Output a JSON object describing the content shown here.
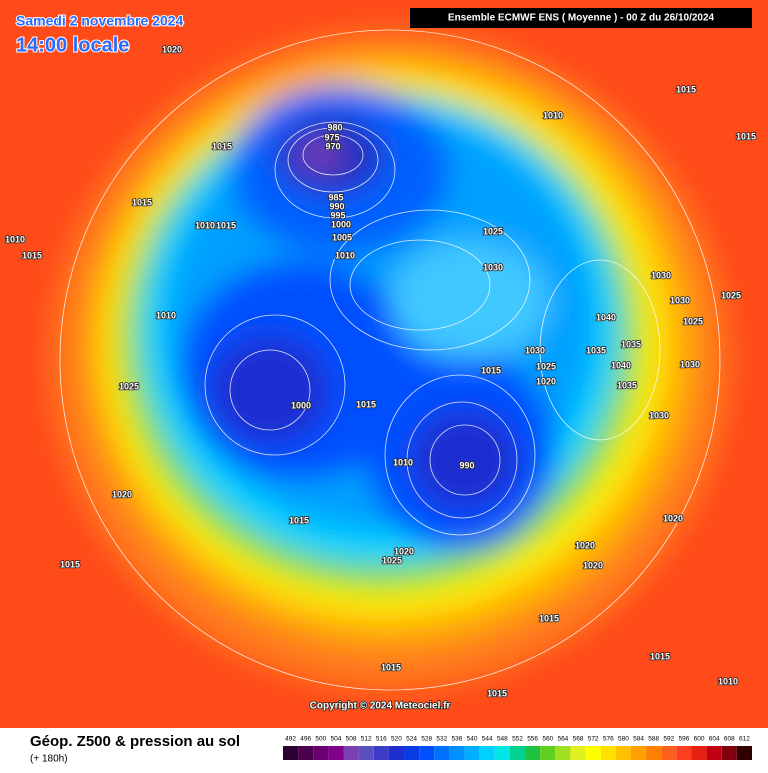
{
  "header": {
    "date": "Samedi 2 novembre 2024",
    "time": "14:00 locale",
    "run": "Ensemble ECMWF ENS  ( Moyenne )  -  00 Z du 26/10/2024"
  },
  "map": {
    "pressure_labels": [
      980,
      975,
      970,
      985,
      990,
      995,
      1000,
      1005,
      1010,
      1020,
      1015,
      1015,
      1010,
      1015,
      1010,
      1015,
      1010,
      1015,
      1015,
      1025,
      1030,
      1010,
      1025,
      1000,
      1015,
      1015,
      1030,
      1025,
      1020,
      1035,
      1040,
      1035,
      1040,
      1035,
      1030,
      1030,
      1025,
      1030,
      1030,
      1020,
      1015,
      1015,
      990,
      1010,
      1020,
      1025,
      1020,
      1020,
      1015,
      1015,
      1015,
      1015,
      1010,
      1020,
      1025
    ]
  },
  "footer": {
    "title": "Géop. Z500 & pression au sol",
    "lead": "(+ 180h)",
    "copyright": "Copyright © 2024 Meteociel.fr"
  },
  "scale": {
    "values": [
      492,
      496,
      500,
      504,
      508,
      512,
      516,
      520,
      524,
      528,
      532,
      536,
      540,
      544,
      548,
      552,
      556,
      560,
      564,
      568,
      572,
      576,
      580,
      584,
      588,
      592,
      596,
      600,
      604,
      608,
      612
    ],
    "colors": [
      "#2b0033",
      "#4b0050",
      "#6a0070",
      "#80008a",
      "#7a3fb0",
      "#5a4fc0",
      "#3c3cc8",
      "#1e2fd0",
      "#0a3ce6",
      "#0050ff",
      "#0070ff",
      "#0090ff",
      "#00b0ff",
      "#00d0ff",
      "#00e6e6",
      "#00d090",
      "#20c040",
      "#60d020",
      "#a0e020",
      "#e0f020",
      "#ffff00",
      "#ffe000",
      "#ffc000",
      "#ffa000",
      "#ff8000",
      "#ff6020",
      "#ff4020",
      "#e82010",
      "#c00010",
      "#800010",
      "#300000"
    ]
  }
}
